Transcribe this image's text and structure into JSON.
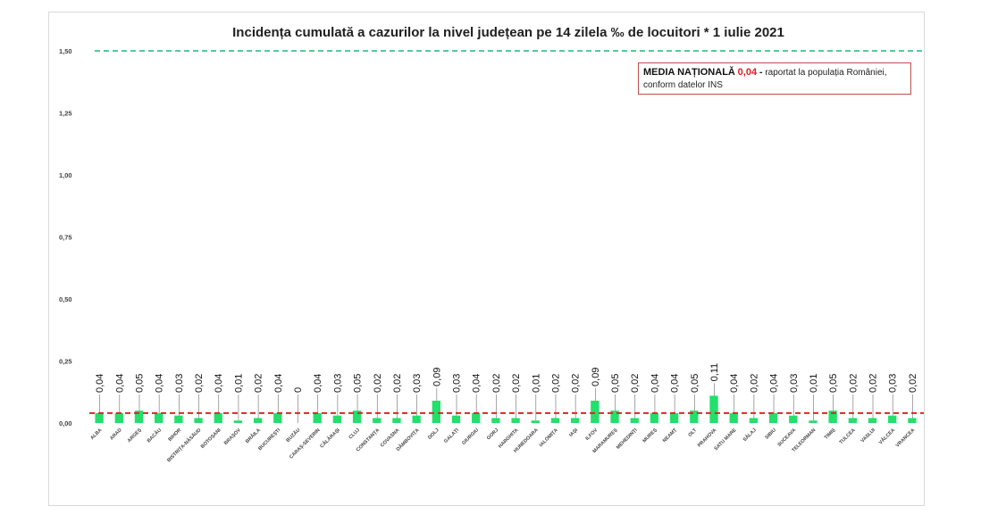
{
  "chart_data": {
    "type": "bar",
    "title": "Incidența cumulată a cazurilor la nivel județean pe 14 zilela ‰ de locuitori *  1 iulie 2021",
    "categories": [
      "ALBA",
      "ARAD",
      "ARGEȘ",
      "BACĂU",
      "BIHOR",
      "BISTRIȚA-NĂSĂUD",
      "BOTOȘANI",
      "BRAȘOV",
      "BRĂILA",
      "BUCUREȘTI",
      "BUZĂU",
      "CARAȘ-SEVERIN",
      "CĂLĂRAȘI",
      "CLUJ",
      "CONSTANȚA",
      "COVASNA",
      "DÂMBOVIȚA",
      "DOLJ",
      "GALAȚI",
      "GIURGIU",
      "GORJ",
      "HARGHITA",
      "HUNEDOARA",
      "IALOMIȚA",
      "IAȘI",
      "ILFOV",
      "MARAMUREȘ",
      "MEHEDINȚI",
      "MUREȘ",
      "NEAMȚ",
      "OLT",
      "PRAHOVA",
      "SATU MARE",
      "SĂLAJ",
      "SIBIU",
      "SUCEAVA",
      "TELEORMAN",
      "TIMIȘ",
      "TULCEA",
      "VASLUI",
      "VÂLCEA",
      "VRANCEA"
    ],
    "values": [
      0.04,
      0.04,
      0.05,
      0.04,
      0.03,
      0.02,
      0.04,
      0.01,
      0.02,
      0.04,
      0,
      0.04,
      0.03,
      0.05,
      0.02,
      0.02,
      0.03,
      0.09,
      0.03,
      0.04,
      0.02,
      0.02,
      0.01,
      0.02,
      0.02,
      0.09,
      0.05,
      0.02,
      0.04,
      0.04,
      0.05,
      0.11,
      0.04,
      0.02,
      0.04,
      0.03,
      0.01,
      0.05,
      0.02,
      0.02,
      0.03,
      0.02
    ],
    "value_labels": [
      "0,04",
      "0,04",
      "0,05",
      "0,04",
      "0,03",
      "0,02",
      "0,04",
      "0,01",
      "0,02",
      "0,04",
      "0",
      "0,04",
      "0,03",
      "0,05",
      "0,02",
      "0,02",
      "0,03",
      "0,09",
      "0,03",
      "0,04",
      "0,02",
      "0,02",
      "0,01",
      "0,02",
      "0,02",
      "0,09",
      "0,05",
      "0,02",
      "0,04",
      "0,04",
      "0,05",
      "0,11",
      "0,04",
      "0,02",
      "0,04",
      "0,03",
      "0,01",
      "0,05",
      "0,02",
      "0,02",
      "0,03",
      "0,02"
    ],
    "ylim": [
      0,
      1.5
    ],
    "yticks": [
      0,
      0.25,
      0.5,
      0.75,
      1.0,
      1.25,
      1.5
    ],
    "ytick_labels": [
      "0,00",
      "0,25",
      "0,50",
      "0,75",
      "1,00",
      "1,25",
      "1,50"
    ],
    "national_average": 0.04,
    "threshold": 1.5,
    "colors": {
      "bar": "#22e06b",
      "average_line": "#d62828",
      "threshold_line": "#1fb87a",
      "label_line": "#7f7f7f"
    },
    "legend_placement": "top-right",
    "grid": false
  },
  "annotation": {
    "lead": "MEDIA NAȚIONALĂ",
    "value": "0,04",
    "dash": "-",
    "text": "raportat la populația României, conform datelor INS"
  }
}
